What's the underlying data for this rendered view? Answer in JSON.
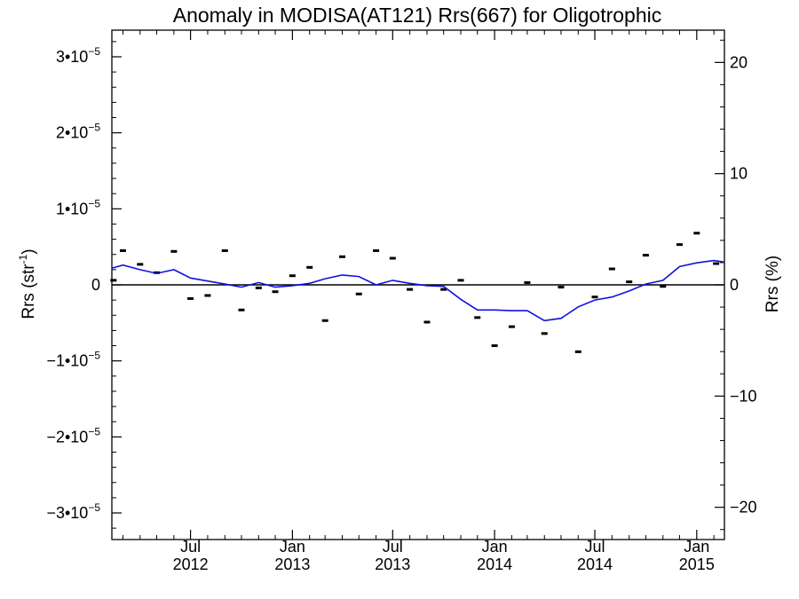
{
  "chart_data": {
    "type": "line",
    "title": "Anomaly in MODISA(AT121) Rrs(667) for Oligotrophic",
    "ylabel_left": {
      "base": "Rrs (str",
      "sup": "-1",
      "close": ")"
    },
    "ylabel_right": "Rrs (%)",
    "xlim": [
      "2012-02-10",
      "2015-02-20"
    ],
    "ylim_left": [
      -3.35e-05,
      3.35e-05
    ],
    "ylim_right": [
      -22.9,
      22.9
    ],
    "left_ticks": [
      {
        "value": -3e-05,
        "mant": "−3•10",
        "exp": "−5"
      },
      {
        "value": -2e-05,
        "mant": "−2•10",
        "exp": "−5"
      },
      {
        "value": -1e-05,
        "mant": "−1•10",
        "exp": "−5"
      },
      {
        "value": 0,
        "mant": "0",
        "exp": ""
      },
      {
        "value": 1e-05,
        "mant": "1•10",
        "exp": "−5"
      },
      {
        "value": 2e-05,
        "mant": "2•10",
        "exp": "−5"
      },
      {
        "value": 3e-05,
        "mant": "3•10",
        "exp": "−5"
      }
    ],
    "right_ticks": [
      {
        "value": -20,
        "label": "−20"
      },
      {
        "value": -10,
        "label": "−10"
      },
      {
        "value": 0,
        "label": "0"
      },
      {
        "value": 10,
        "label": "10"
      },
      {
        "value": 20,
        "label": "20"
      }
    ],
    "x_ticks": [
      {
        "date": "2012-07-01",
        "month": "Jul",
        "year": "2012"
      },
      {
        "date": "2013-01-01",
        "month": "Jan",
        "year": "2013"
      },
      {
        "date": "2013-07-01",
        "month": "Jul",
        "year": "2013"
      },
      {
        "date": "2014-01-01",
        "month": "Jan",
        "year": "2014"
      },
      {
        "date": "2014-07-01",
        "month": "Jul",
        "year": "2014"
      },
      {
        "date": "2015-01-01",
        "month": "Jan",
        "year": "2015"
      }
    ],
    "zero_line": true,
    "series": [
      {
        "style": "markers",
        "color": "#000000",
        "points": [
          [
            "2012-02-13",
            6e-07
          ],
          [
            "2012-03-01",
            4.5e-06
          ],
          [
            "2012-04-01",
            2.7e-06
          ],
          [
            "2012-05-01",
            1.6e-06
          ],
          [
            "2012-06-01",
            4.4e-06
          ],
          [
            "2012-07-01",
            -1.8e-06
          ],
          [
            "2012-08-01",
            -1.4e-06
          ],
          [
            "2012-09-01",
            4.5e-06
          ],
          [
            "2012-10-01",
            -3.3e-06
          ],
          [
            "2012-11-01",
            -4e-07
          ],
          [
            "2012-12-01",
            -9e-07
          ],
          [
            "2013-01-01",
            1.2e-06
          ],
          [
            "2013-02-01",
            2.3e-06
          ],
          [
            "2013-03-01",
            -4.7e-06
          ],
          [
            "2013-04-01",
            3.7e-06
          ],
          [
            "2013-05-01",
            -1.2e-06
          ],
          [
            "2013-06-01",
            4.5e-06
          ],
          [
            "2013-07-01",
            3.5e-06
          ],
          [
            "2013-08-01",
            -6e-07
          ],
          [
            "2013-09-01",
            -4.9e-06
          ],
          [
            "2013-10-01",
            -6e-07
          ],
          [
            "2013-11-01",
            6e-07
          ],
          [
            "2013-12-01",
            -4.3e-06
          ],
          [
            "2014-01-01",
            -8e-06
          ],
          [
            "2014-02-01",
            -5.5e-06
          ],
          [
            "2014-03-01",
            3e-07
          ],
          [
            "2014-04-01",
            -6.4e-06
          ],
          [
            "2014-05-01",
            -3e-07
          ],
          [
            "2014-06-01",
            -8.8e-06
          ],
          [
            "2014-07-01",
            -1.6e-06
          ],
          [
            "2014-08-01",
            2.1e-06
          ],
          [
            "2014-09-01",
            4e-07
          ],
          [
            "2014-10-01",
            3.9e-06
          ],
          [
            "2014-11-01",
            -2e-07
          ],
          [
            "2014-12-01",
            5.3e-06
          ],
          [
            "2015-01-01",
            6.8e-06
          ],
          [
            "2015-02-05",
            2.8e-06
          ]
        ]
      },
      {
        "style": "line",
        "color": "#1010e0",
        "points": [
          [
            "2012-02-10",
            2.2e-06
          ],
          [
            "2012-03-01",
            2.6e-06
          ],
          [
            "2012-04-01",
            2e-06
          ],
          [
            "2012-05-01",
            1.5e-06
          ],
          [
            "2012-06-01",
            2e-06
          ],
          [
            "2012-07-01",
            9e-07
          ],
          [
            "2012-08-01",
            5e-07
          ],
          [
            "2012-09-01",
            1e-07
          ],
          [
            "2012-10-01",
            -3e-07
          ],
          [
            "2012-11-01",
            3e-07
          ],
          [
            "2012-12-01",
            -3e-07
          ],
          [
            "2013-01-01",
            -1e-07
          ],
          [
            "2013-02-01",
            2e-07
          ],
          [
            "2013-03-01",
            8e-07
          ],
          [
            "2013-04-01",
            1.3e-06
          ],
          [
            "2013-05-01",
            1.1e-06
          ],
          [
            "2013-06-01",
            0.0
          ],
          [
            "2013-07-01",
            6e-07
          ],
          [
            "2013-08-01",
            2e-07
          ],
          [
            "2013-09-01",
            -1e-07
          ],
          [
            "2013-10-01",
            -2e-07
          ],
          [
            "2013-11-01",
            -1.9e-06
          ],
          [
            "2013-12-01",
            -3.3e-06
          ],
          [
            "2014-01-01",
            -3.3e-06
          ],
          [
            "2014-02-01",
            -3.4e-06
          ],
          [
            "2014-03-01",
            -3.4e-06
          ],
          [
            "2014-04-01",
            -4.7e-06
          ],
          [
            "2014-05-01",
            -4.4e-06
          ],
          [
            "2014-06-01",
            -2.9e-06
          ],
          [
            "2014-07-01",
            -2e-06
          ],
          [
            "2014-08-01",
            -1.6e-06
          ],
          [
            "2014-09-01",
            -8e-07
          ],
          [
            "2014-10-01",
            1e-07
          ],
          [
            "2014-11-01",
            6e-07
          ],
          [
            "2014-12-01",
            2.4e-06
          ],
          [
            "2015-01-01",
            2.9e-06
          ],
          [
            "2015-02-01",
            3.2e-06
          ],
          [
            "2015-02-20",
            3e-06
          ]
        ]
      }
    ]
  }
}
